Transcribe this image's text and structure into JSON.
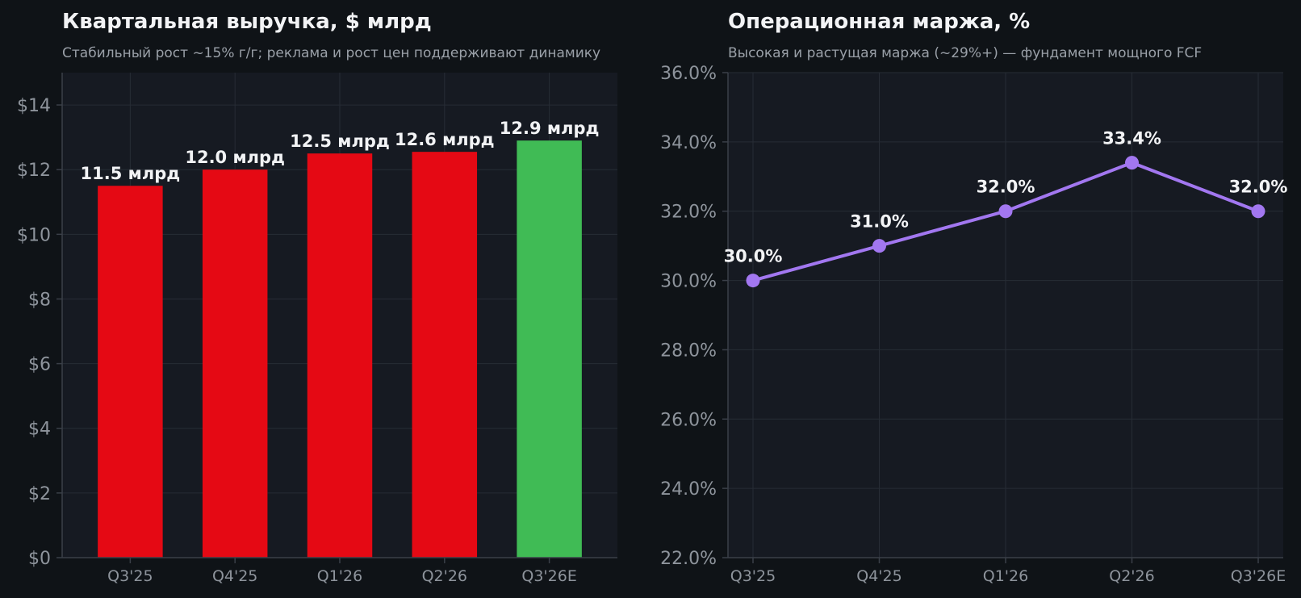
{
  "colors": {
    "page_bg": "#0f1317",
    "plot_bg": "#161a22",
    "grid": "#272c35",
    "axis": "#3a3f48",
    "title": "#f2f3f5",
    "subtitle": "#9aa0a8",
    "tick": "#8e949c",
    "label": "#f2f3f5",
    "bar_actual": "#e50914",
    "bar_estimate": "#40bb55",
    "line": "#a277f0"
  },
  "chart_data": [
    {
      "type": "bar",
      "title": "Квартальная выручка, $ млрд",
      "subtitle": "Стабильный рост ~15% г/г; реклама и рост цен поддерживают динамику",
      "categories": [
        "Q3'25",
        "Q4'25",
        "Q1'26",
        "Q2'26",
        "Q3'26E"
      ],
      "values": [
        11.5,
        12.0,
        12.5,
        12.55,
        12.9
      ],
      "data_labels": [
        "11.5 млрд",
        "12.0 млрд",
        "12.5 млрд",
        "12.6 млрд",
        "12.9 млрд"
      ],
      "estimate_flags": [
        false,
        false,
        false,
        false,
        true
      ],
      "ylim": [
        0,
        15
      ],
      "yticks": [
        0,
        2,
        4,
        6,
        8,
        10,
        12,
        14
      ],
      "ytick_labels": [
        "$0",
        "$2",
        "$4",
        "$6",
        "$8",
        "$10",
        "$12",
        "$14"
      ],
      "grid": true,
      "xlabel": "",
      "ylabel": ""
    },
    {
      "type": "line",
      "title": "Операционная маржа, %",
      "subtitle": "Высокая и растущая маржа (~29%+) — фундамент мощного FCF",
      "categories": [
        "Q3'25",
        "Q4'25",
        "Q1'26",
        "Q2'26",
        "Q3'26E"
      ],
      "values": [
        30.0,
        31.0,
        32.0,
        33.4,
        32.0
      ],
      "data_labels": [
        "30.0%",
        "31.0%",
        "32.0%",
        "33.4%",
        "32.0%"
      ],
      "ylim": [
        22,
        36
      ],
      "yticks": [
        22,
        24,
        26,
        28,
        30,
        32,
        34,
        36
      ],
      "ytick_labels": [
        "22.0%",
        "24.0%",
        "26.0%",
        "28.0%",
        "30.0%",
        "32.0%",
        "34.0%",
        "36.0%"
      ],
      "grid": true,
      "xlabel": "",
      "ylabel": ""
    }
  ]
}
